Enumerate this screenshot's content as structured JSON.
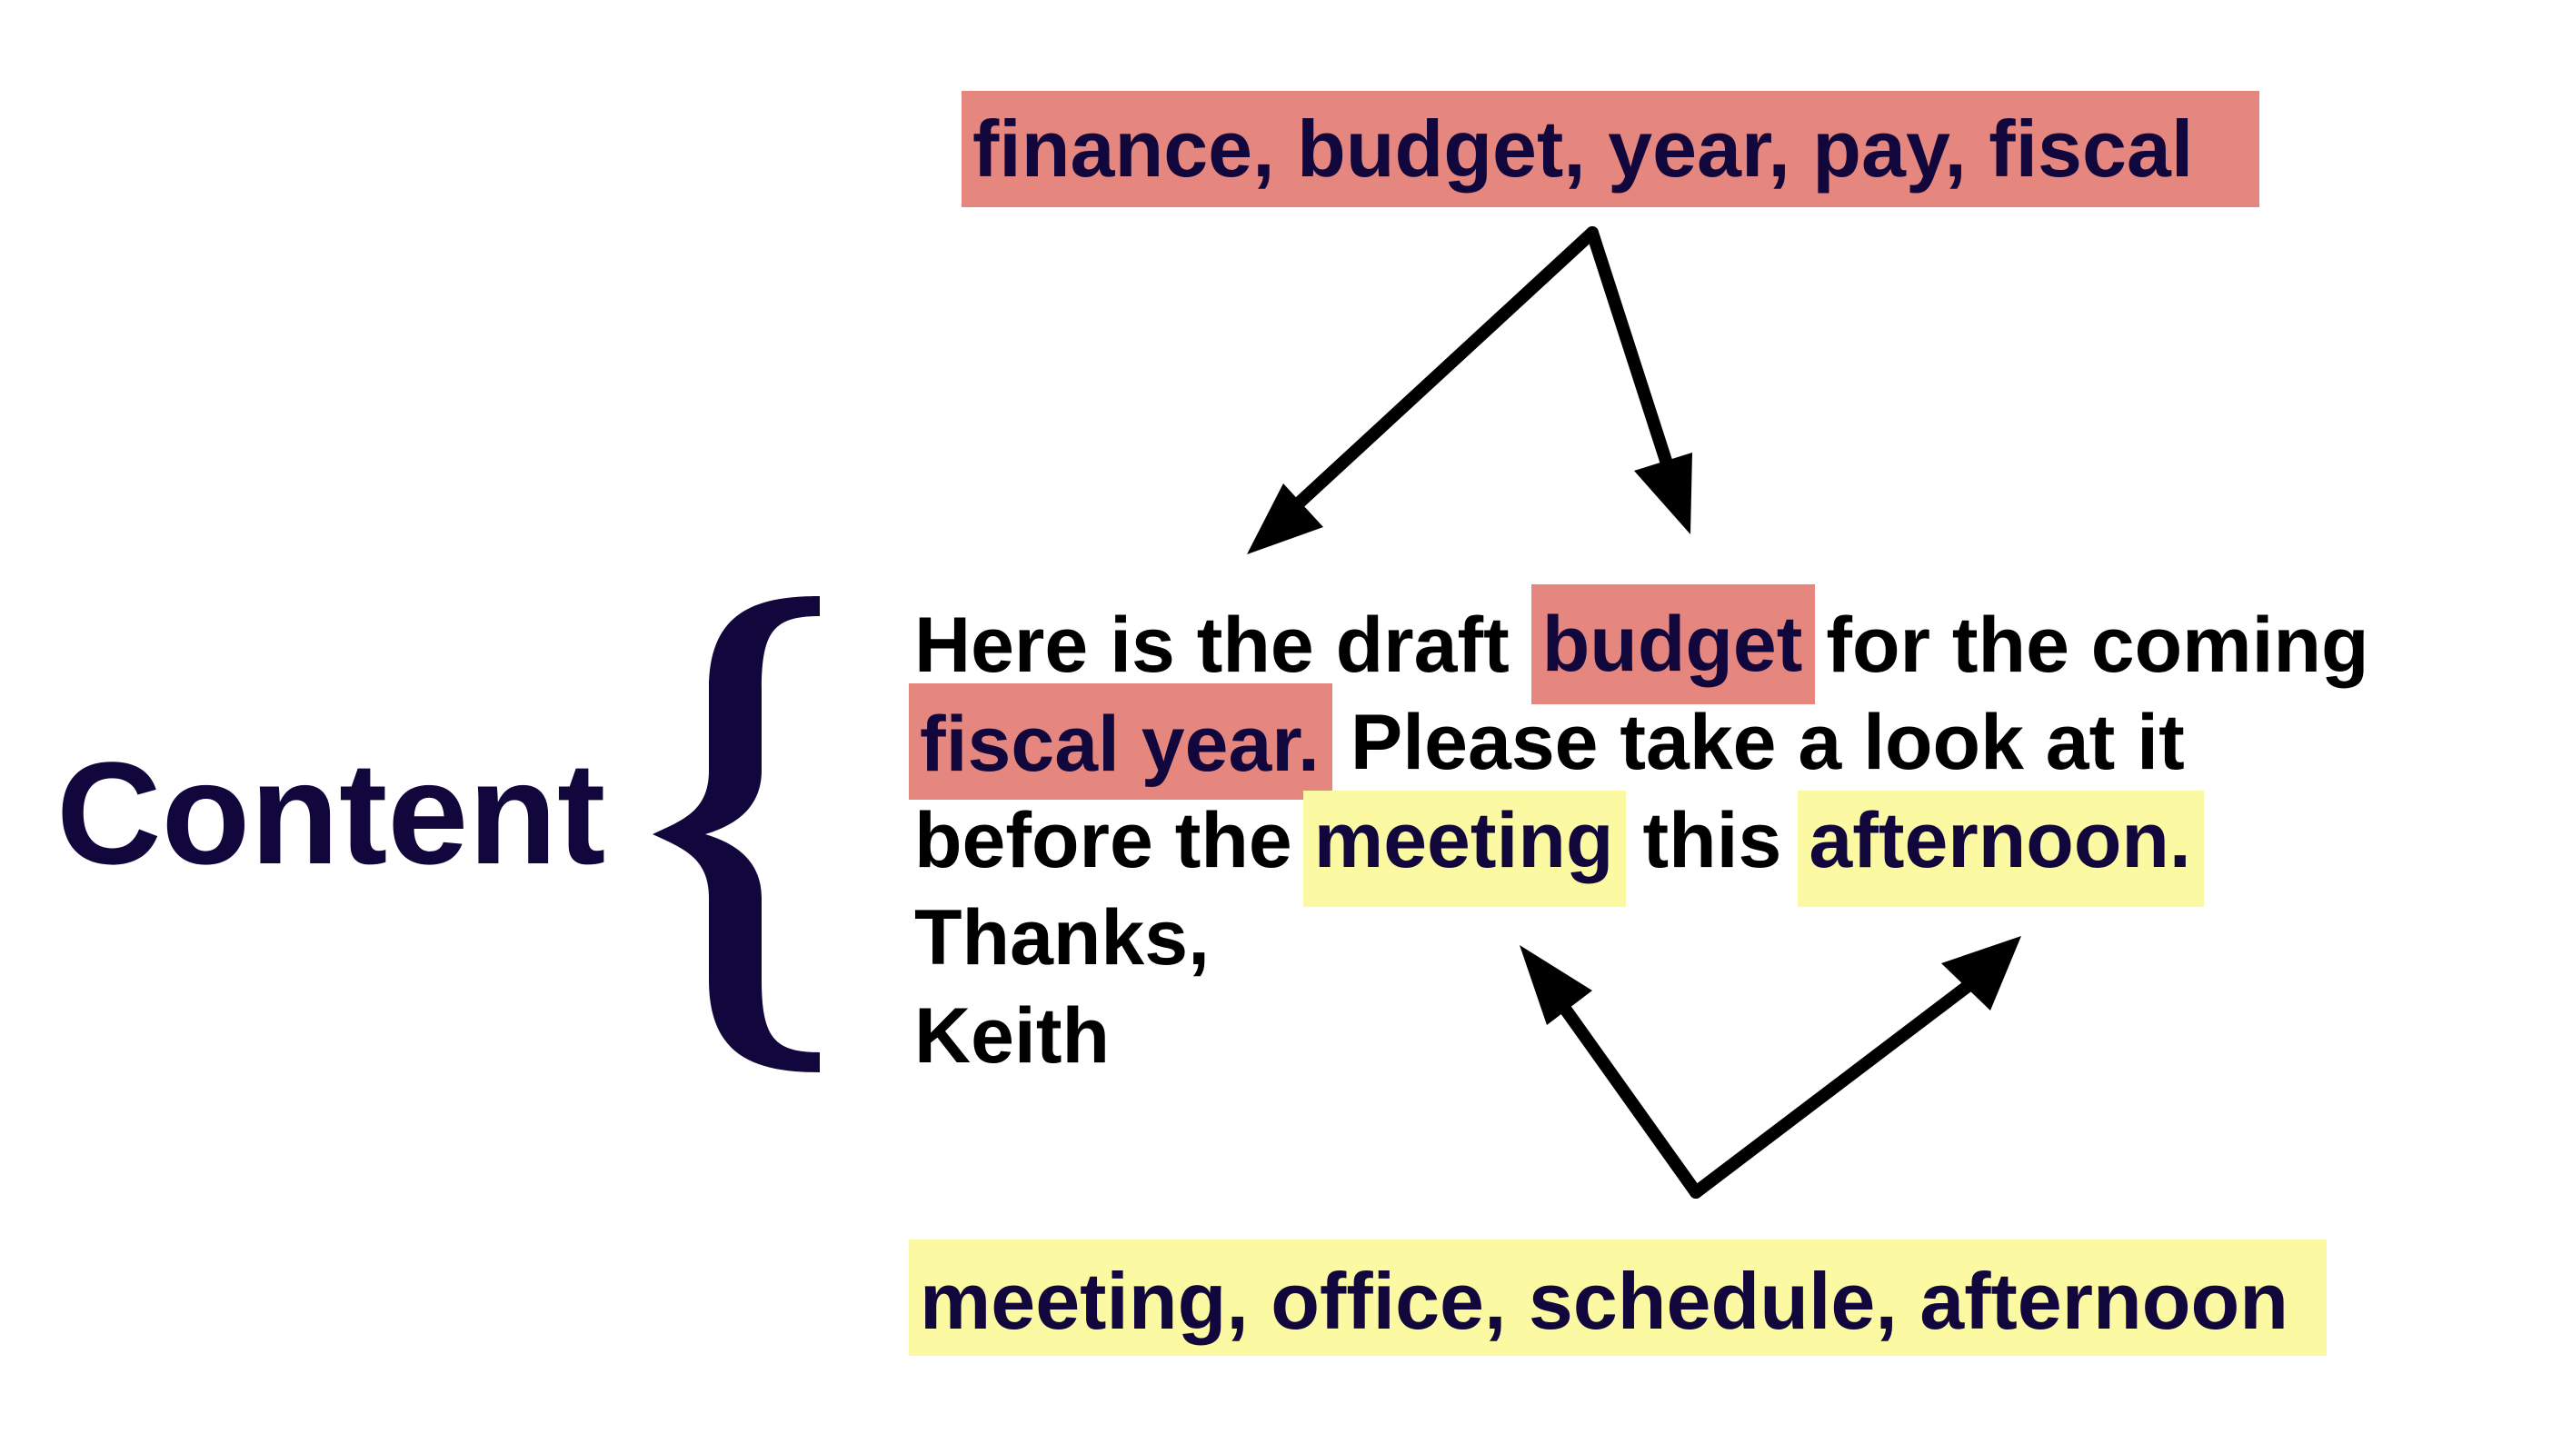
{
  "topics": {
    "finance": {
      "words": "finance, budget, year, pay, fiscal",
      "color": "#e5877e"
    },
    "meeting": {
      "words": "meeting, office, schedule, afternoon",
      "color": "#fbf9a2"
    }
  },
  "content_label": "Content",
  "email": {
    "line1": {
      "a": "Here is the draft",
      "budget": "budget",
      "b": "for the coming"
    },
    "line2": {
      "fiscal": "fiscal year.",
      "b": "Please take a look at it"
    },
    "line3": {
      "a": "before the",
      "meeting": "meeting",
      "b": "this",
      "afternoon": "afternoon."
    },
    "line4": "Thanks,",
    "line5": "Keith"
  },
  "colors": {
    "text_navy": "#12073d",
    "text_black": "#000000"
  }
}
